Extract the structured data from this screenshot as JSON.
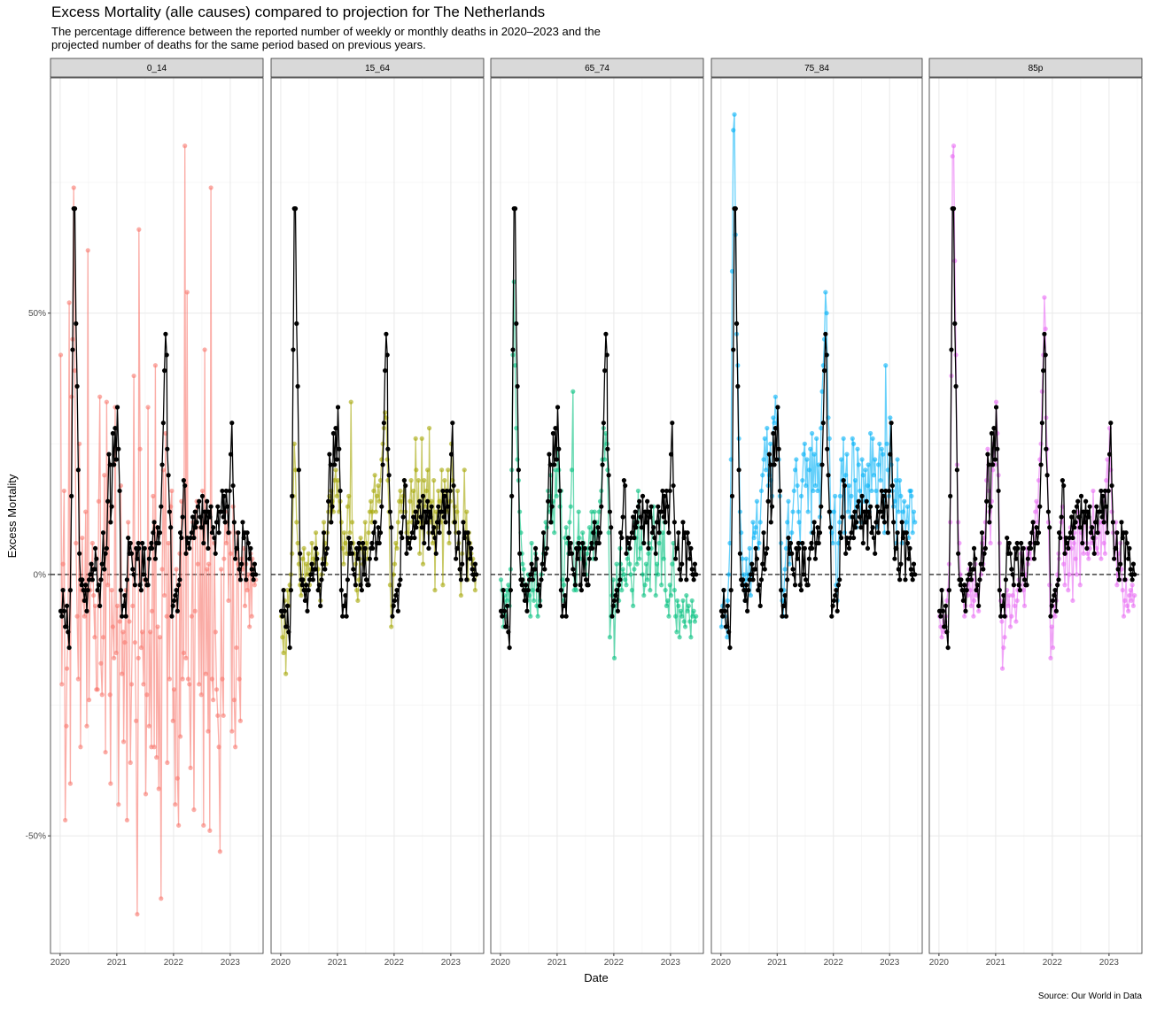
{
  "chart_data": {
    "type": "line",
    "title": "Excess Mortality (alle causes) compared to projection for The Netherlands",
    "subtitle": [
      "The percentage difference between the reported number of weekly or monthly deaths in 2020–2023 and the",
      "projected number of deaths for the same period based on previous years."
    ],
    "xlabel": "Date",
    "ylabel": "Excess Mortality",
    "caption": "Source: Our World in Data",
    "xlim": [
      2019.83,
      2023.58
    ],
    "xticks": [
      2020,
      2021,
      2022,
      2023
    ],
    "x_minor_ticks": [
      2020.5,
      2021.5,
      2022.5,
      2023.5
    ],
    "ylim": [
      -72.5,
      95
    ],
    "yticks": [
      {
        "value": -50,
        "label": "-50%"
      },
      {
        "value": 0,
        "label": "0%"
      },
      {
        "value": 50,
        "label": "50%"
      }
    ],
    "y_minor_ticks": [
      -25,
      25,
      75
    ],
    "hline": 0,
    "grid": true,
    "x": [
      2020.01,
      2020.03,
      2020.05,
      2020.07,
      2020.09,
      2020.11,
      2020.12,
      2020.14,
      2020.16,
      2020.18,
      2020.2,
      2020.22,
      2020.24,
      2020.26,
      2020.28,
      2020.3,
      2020.32,
      2020.34,
      2020.36,
      2020.38,
      2020.39,
      2020.41,
      2020.43,
      2020.45,
      2020.47,
      2020.49,
      2020.51,
      2020.53,
      2020.55,
      2020.57,
      2020.59,
      2020.61,
      2020.62,
      2020.64,
      2020.66,
      2020.68,
      2020.7,
      2020.72,
      2020.74,
      2020.76,
      2020.78,
      2020.8,
      2020.82,
      2020.84,
      2020.86,
      2020.88,
      2020.89,
      2020.91,
      2020.93,
      2020.95,
      2020.97,
      2020.99,
      2021.01,
      2021.03,
      2021.05,
      2021.07,
      2021.09,
      2021.11,
      2021.12,
      2021.14,
      2021.16,
      2021.18,
      2021.2,
      2021.22,
      2021.24,
      2021.26,
      2021.28,
      2021.3,
      2021.32,
      2021.34,
      2021.36,
      2021.38,
      2021.39,
      2021.41,
      2021.43,
      2021.45,
      2021.47,
      2021.49,
      2021.51,
      2021.53,
      2021.55,
      2021.57,
      2021.59,
      2021.61,
      2021.62,
      2021.64,
      2021.66,
      2021.68,
      2021.7,
      2021.72,
      2021.74,
      2021.76,
      2021.78,
      2021.8,
      2021.82,
      2021.84,
      2021.86,
      2021.88,
      2021.89,
      2021.91,
      2021.93,
      2021.95,
      2021.97,
      2021.99,
      2022.01,
      2022.03,
      2022.05,
      2022.07,
      2022.09,
      2022.11,
      2022.12,
      2022.14,
      2022.16,
      2022.18,
      2022.2,
      2022.22,
      2022.24,
      2022.26,
      2022.28,
      2022.3,
      2022.32,
      2022.34,
      2022.36,
      2022.38,
      2022.39,
      2022.41,
      2022.43,
      2022.45,
      2022.47,
      2022.49,
      2022.51,
      2022.53,
      2022.55,
      2022.57,
      2022.59,
      2022.61,
      2022.62,
      2022.64,
      2022.66,
      2022.68,
      2022.7,
      2022.72,
      2022.74,
      2022.76,
      2022.78,
      2022.8,
      2022.82,
      2022.84,
      2022.86,
      2022.88,
      2022.89,
      2022.91,
      2022.93,
      2022.95,
      2022.97,
      2022.99,
      2023.01,
      2023.03,
      2023.05,
      2023.07,
      2023.09,
      2023.11,
      2023.12,
      2023.14,
      2023.16,
      2023.18,
      2023.2,
      2023.22,
      2023.24,
      2023.26,
      2023.28,
      2023.3,
      2023.32,
      2023.34,
      2023.36,
      2023.38,
      2023.39,
      2023.41,
      2023.43,
      2023.45
    ],
    "reference": {
      "color": "#000000",
      "values": [
        -7,
        -8,
        -3,
        -7,
        -10,
        -10,
        -6,
        -11,
        -14,
        -3,
        15,
        43,
        70,
        70,
        48,
        36,
        20,
        4,
        -1,
        -2,
        -1,
        -3,
        -5,
        -2,
        -7,
        -3,
        -1,
        0,
        2,
        -1,
        1,
        1,
        5,
        3,
        -3,
        -2,
        -6,
        -1,
        2,
        8,
        1,
        4,
        5,
        14,
        23,
        21,
        10,
        13,
        27,
        21,
        28,
        22,
        32,
        24,
        16,
        -3,
        -8,
        -6,
        -6,
        -4,
        -8,
        -1,
        7,
        4,
        6,
        4,
        1,
        0,
        -2,
        5,
        3,
        6,
        5,
        -2,
        -3,
        6,
        0,
        5,
        -1,
        -2,
        -2,
        3,
        5,
        6,
        5,
        8,
        10,
        3,
        6,
        9,
        6,
        8,
        13,
        21,
        29,
        39,
        46,
        42,
        24,
        19,
        12,
        9,
        -8,
        -6,
        -5,
        -4,
        -3,
        -7,
        -2,
        -1,
        8,
        7,
        11,
        18,
        17,
        4,
        7,
        6,
        5,
        7,
        8,
        11,
        7,
        12,
        9,
        10,
        13,
        14,
        11,
        9,
        15,
        6,
        12,
        10,
        14,
        5,
        12,
        11,
        13,
        8,
        9,
        7,
        4,
        10,
        13,
        8,
        12,
        12,
        16,
        11,
        15,
        10,
        16,
        13,
        8,
        16,
        23,
        29,
        17,
        10,
        3,
        5,
        5,
        8,
        1,
        -1,
        2,
        10,
        7,
        8,
        -1,
        8,
        6,
        3,
        5,
        1,
        0,
        -1,
        2,
        0
      ]
    },
    "series": [
      {
        "name": "0_14",
        "color": "#F8766D",
        "values": [
          42,
          -21,
          2,
          16,
          -47,
          -29,
          -18,
          -11,
          52,
          -40,
          34,
          45,
          74,
          39,
          6,
          -8,
          -20,
          25,
          -33,
          -3,
          7,
          -5,
          -8,
          12,
          -29,
          62,
          -24,
          -3,
          -1,
          6,
          -4,
          -12,
          -6,
          -22,
          -22,
          14,
          34,
          -17,
          -23,
          -12,
          19,
          -34,
          33,
          -2,
          14,
          -23,
          -40,
          -3,
          -10,
          -16,
          32,
          -15,
          -6,
          -44,
          -9,
          17,
          -19,
          -11,
          -32,
          -13,
          -3,
          -47,
          10,
          -9,
          -36,
          -21,
          -6,
          38,
          -13,
          -28,
          -65,
          -16,
          66,
          24,
          -14,
          -11,
          -21,
          -1,
          -42,
          -23,
          32,
          -29,
          -11,
          -33,
          -7,
          15,
          -33,
          40,
          -35,
          -10,
          -41,
          -12,
          -62,
          1,
          20,
          -4,
          27,
          -8,
          -36,
          6,
          -20,
          13,
          16,
          -28,
          -22,
          -44,
          1,
          -39,
          -48,
          4,
          -31,
          14,
          -20,
          -15,
          82,
          -16,
          54,
          -20,
          -21,
          -37,
          -8,
          10,
          -45,
          -7,
          12,
          14,
          2,
          -21,
          9,
          -23,
          16,
          -48,
          43,
          -19,
          1,
          -30,
          2,
          -49,
          74,
          -20,
          -24,
          6,
          -11,
          -22,
          -27,
          -33,
          -53,
          1,
          -20,
          -27,
          3,
          12,
          6,
          10,
          -5,
          8,
          4,
          -30,
          13,
          -24,
          -33,
          -14,
          8,
          2,
          -20,
          -28,
          3,
          1,
          5,
          -6,
          2,
          -3,
          0,
          -10,
          4,
          -8,
          3,
          1,
          -2,
          -1
        ]
      },
      {
        "name": "15_64",
        "color": "#A3A500",
        "values": [
          -8,
          -12,
          -15,
          -5,
          -19,
          -10,
          -3,
          -6,
          -2,
          0,
          4,
          15,
          25,
          20,
          10,
          6,
          2,
          -2,
          -4,
          -1,
          3,
          5,
          -3,
          2,
          0,
          4,
          -2,
          1,
          6,
          3,
          2,
          5,
          8,
          4,
          1,
          -2,
          -5,
          0,
          3,
          10,
          6,
          2,
          8,
          12,
          15,
          10,
          16,
          14,
          12,
          18,
          20,
          15,
          18,
          12,
          14,
          10,
          5,
          2,
          8,
          6,
          4,
          13,
          15,
          8,
          33,
          10,
          6,
          4,
          2,
          -3,
          -5,
          -1,
          3,
          7,
          5,
          2,
          4,
          10,
          6,
          3,
          8,
          12,
          14,
          10,
          12,
          16,
          19,
          12,
          15,
          17,
          14,
          18,
          22,
          25,
          28,
          31,
          30,
          22,
          18,
          12,
          -2,
          -10,
          -6,
          0,
          2,
          6,
          5,
          10,
          14,
          16,
          12,
          14,
          15,
          18,
          12,
          8,
          10,
          6,
          14,
          18,
          10,
          16,
          12,
          26,
          20,
          11,
          18,
          4,
          10,
          26,
          2,
          18,
          13,
          16,
          20,
          8,
          28,
          10,
          14,
          6,
          18,
          -3,
          12,
          9,
          16,
          14,
          10,
          20,
          -2,
          12,
          18,
          16,
          12,
          20,
          6,
          14,
          25,
          18,
          10,
          13,
          8,
          12,
          16,
          6,
          1,
          -4,
          4,
          10,
          20,
          7,
          12,
          -1,
          8,
          6,
          4,
          2,
          3,
          1,
          -3,
          0
        ]
      },
      {
        "name": "65_74",
        "color": "#00BF7D",
        "values": [
          -1,
          -3,
          -10,
          -4,
          -8,
          -3,
          -5,
          -2,
          -6,
          1,
          20,
          42,
          56,
          40,
          28,
          22,
          18,
          12,
          8,
          4,
          2,
          1,
          -2,
          -3,
          -5,
          0,
          -4,
          -8,
          6,
          -3,
          -5,
          1,
          4,
          -6,
          -8,
          -2,
          -5,
          0,
          2,
          4,
          5,
          10,
          9,
          16,
          12,
          15,
          19,
          10,
          14,
          8,
          20,
          15,
          24,
          20,
          13,
          16,
          -1,
          -5,
          -2,
          7,
          9,
          6,
          4,
          10,
          13,
          20,
          35,
          -3,
          -2,
          -3,
          6,
          12,
          7,
          3,
          5,
          8,
          6,
          2,
          0,
          4,
          5,
          9,
          5,
          12,
          8,
          3,
          12,
          6,
          10,
          8,
          12,
          14,
          16,
          22,
          28,
          22,
          27,
          25,
          20,
          8,
          -12,
          -8,
          -4,
          -1,
          -16,
          -6,
          2,
          -3,
          -5,
          5,
          2,
          -3,
          1,
          0,
          -1,
          -2,
          3,
          5,
          2,
          0,
          -3,
          -6,
          1,
          10,
          7,
          2,
          16,
          3,
          5,
          9,
          0,
          -4,
          -2,
          2,
          -1,
          4,
          6,
          -3,
          5,
          8,
          13,
          7,
          -4,
          2,
          0,
          6,
          12,
          -2,
          8,
          3,
          10,
          -3,
          -6,
          -5,
          -8,
          -2,
          -4,
          2,
          6,
          -3,
          -8,
          -11,
          -5,
          -6,
          -12,
          -7,
          -8,
          -5,
          -9,
          -10,
          -4,
          -7,
          -6,
          -9,
          -12,
          -5,
          -8,
          -7,
          -9,
          -8
        ]
      },
      {
        "name": "75_84",
        "color": "#00B0F6",
        "values": [
          -10,
          -6,
          -3,
          -8,
          -10,
          -12,
          -5,
          0,
          6,
          22,
          58,
          85,
          88,
          65,
          46,
          40,
          26,
          12,
          8,
          3,
          -2,
          0,
          -5,
          3,
          -1,
          0,
          5,
          -4,
          2,
          10,
          7,
          8,
          9,
          14,
          5,
          6,
          10,
          16,
          19,
          22,
          26,
          20,
          28,
          17,
          19,
          25,
          18,
          15,
          30,
          29,
          34,
          28,
          32,
          22,
          15,
          6,
          -5,
          -8,
          -3,
          1,
          5,
          10,
          14,
          2,
          4,
          8,
          12,
          16,
          20,
          22,
          17,
          12,
          10,
          6,
          15,
          18,
          23,
          25,
          17,
          22,
          12,
          20,
          24,
          8,
          27,
          16,
          23,
          17,
          26,
          16,
          21,
          11,
          28,
          35,
          40,
          45,
          54,
          50,
          42,
          30,
          26,
          12,
          8,
          6,
          12,
          15,
          -2,
          -5,
          6,
          10,
          15,
          22,
          18,
          26,
          8,
          19,
          23,
          12,
          17,
          11,
          15,
          26,
          25,
          12,
          18,
          9,
          24,
          21,
          16,
          10,
          22,
          19,
          14,
          20,
          11,
          17,
          21,
          12,
          27,
          16,
          26,
          19,
          22,
          16,
          9,
          21,
          25,
          18,
          24,
          23,
          12,
          8,
          40,
          25,
          20,
          15,
          30,
          21,
          16,
          13,
          14,
          18,
          6,
          22,
          12,
          18,
          15,
          6,
          12,
          14,
          8,
          10,
          13,
          7,
          16,
          16,
          15,
          8,
          12,
          10
        ]
      },
      {
        "name": "85p",
        "color": "#E76BF3",
        "values": [
          -8,
          -10,
          -12,
          -7,
          -11,
          -9,
          -8,
          -5,
          -3,
          2,
          10,
          38,
          80,
          82,
          60,
          42,
          21,
          10,
          6,
          0,
          -1,
          -3,
          -5,
          -8,
          -6,
          -2,
          -4,
          1,
          -3,
          -6,
          -1,
          -8,
          -5,
          2,
          -4,
          -3,
          -7,
          -1,
          0,
          6,
          2,
          7,
          10,
          18,
          24,
          16,
          12,
          6,
          14,
          20,
          25,
          21,
          33,
          27,
          19,
          6,
          -5,
          -9,
          -18,
          -14,
          -12,
          -8,
          -3,
          -6,
          -4,
          -10,
          -8,
          -4,
          -2,
          -6,
          -9,
          -5,
          -3,
          -1,
          -2,
          4,
          1,
          -3,
          -6,
          0,
          5,
          2,
          4,
          6,
          3,
          8,
          10,
          6,
          12,
          14,
          10,
          18,
          22,
          25,
          35,
          42,
          53,
          47,
          30,
          24,
          10,
          -2,
          -16,
          -10,
          -14,
          -6,
          -8,
          -5,
          0,
          4,
          3,
          8,
          10,
          13,
          2,
          -2,
          4,
          6,
          -3,
          0,
          9,
          5,
          -5,
          6,
          8,
          3,
          0,
          12,
          9,
          -2,
          8,
          6,
          4,
          10,
          12,
          6,
          4,
          3,
          5,
          9,
          6,
          16,
          8,
          7,
          5,
          4,
          8,
          10,
          3,
          10,
          14,
          6,
          4,
          18,
          22,
          16,
          28,
          20,
          12,
          8,
          3,
          5,
          10,
          -2,
          0,
          4,
          6,
          1,
          -3,
          -8,
          -5,
          -1,
          -6,
          -7,
          -4,
          -3,
          -5,
          -2,
          -6,
          -4
        ]
      }
    ]
  }
}
